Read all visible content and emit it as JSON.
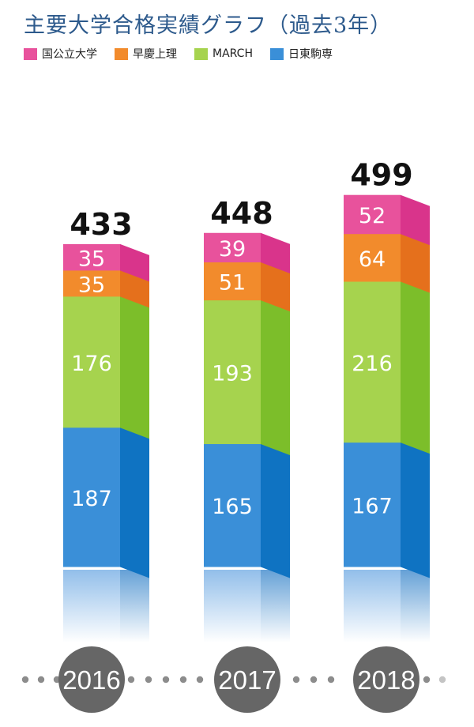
{
  "title": "主要大学合格実績グラフ（過去3年）",
  "legend": [
    {
      "label": "国公立大学",
      "color": "#e8529c"
    },
    {
      "label": "早慶上理",
      "color": "#f28b2c"
    },
    {
      "label": "MARCH",
      "color": "#a6d34e"
    },
    {
      "label": "日東駒専",
      "color": "#3a8fd8"
    }
  ],
  "chart_data": {
    "type": "bar",
    "stacked": true,
    "title": "主要大学合格実績グラフ（過去3年）",
    "categories": [
      "2016",
      "2017",
      "2018"
    ],
    "series": [
      {
        "name": "日東駒専",
        "values": [
          187,
          165,
          167
        ],
        "color": "#3a8fd8",
        "side_color": "#0f73c2"
      },
      {
        "name": "MARCH",
        "values": [
          176,
          193,
          216
        ],
        "color": "#a6d34e",
        "side_color": "#7cbe2a"
      },
      {
        "name": "早慶上理",
        "values": [
          35,
          51,
          64
        ],
        "color": "#f28b2c",
        "side_color": "#e5701c"
      },
      {
        "name": "国公立大学",
        "values": [
          35,
          39,
          52
        ],
        "color": "#e8529c",
        "side_color": "#d9348b"
      }
    ],
    "totals": [
      433,
      448,
      499
    ],
    "legend_position": "top-left"
  }
}
